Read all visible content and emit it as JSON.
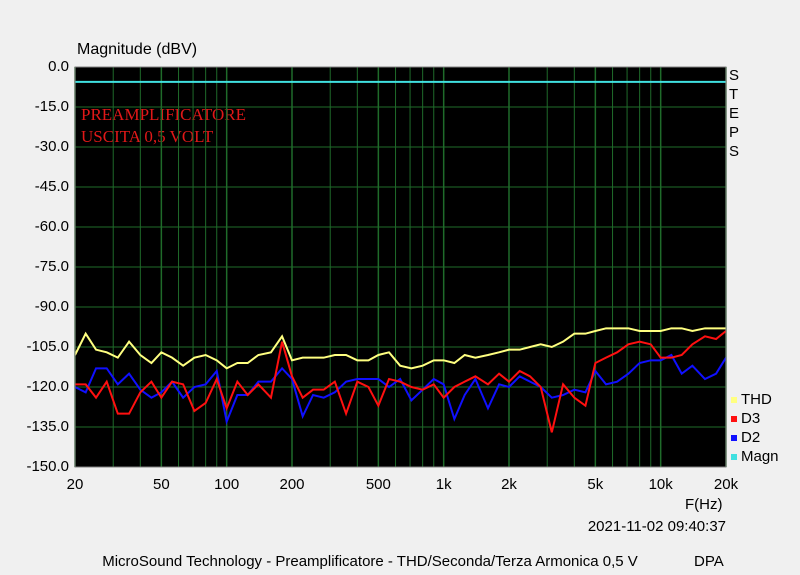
{
  "chart_data": {
    "type": "line",
    "ylabel": "Magnitude (dBV)",
    "xlabel": "F(Hz)",
    "annotations": [
      "PREAMPLIFICATORE",
      "USCITA 0,5 VOLT"
    ],
    "side_label": "STEPS",
    "timestamp": "2021-11-02 09:40:37",
    "footer": "MicroSound Technology - Preamplificatore - THD/Seconda/Terza Armonica 0,5 V",
    "footer_right": "DPA",
    "xscale": "log",
    "xlim": [
      20,
      20000
    ],
    "ylim": [
      -150,
      0
    ],
    "xticks": [
      20,
      50,
      100,
      200,
      500,
      {
        "value": 1000,
        "label": "1k"
      },
      {
        "value": 2000,
        "label": "2k"
      },
      {
        "value": 5000,
        "label": "5k"
      },
      {
        "value": 10000,
        "label": "10k"
      },
      {
        "value": 20000,
        "label": "20k"
      }
    ],
    "xgrid_minor": [
      30,
      40,
      60,
      70,
      80,
      90,
      300,
      400,
      600,
      700,
      800,
      900,
      3000,
      4000,
      6000,
      7000,
      8000,
      9000
    ],
    "yticks": [
      {
        "value": 0,
        "label": "0.0"
      },
      {
        "value": -15,
        "label": "-15.0"
      },
      {
        "value": -30,
        "label": "-30.0"
      },
      {
        "value": -45,
        "label": "-45.0"
      },
      {
        "value": -60,
        "label": "-60.0"
      },
      {
        "value": -75,
        "label": "-75.0"
      },
      {
        "value": -90,
        "label": "-90.0"
      },
      {
        "value": -105,
        "label": "-105.0"
      },
      {
        "value": -120,
        "label": "-120.0"
      },
      {
        "value": -135,
        "label": "-135.0"
      },
      {
        "value": -150,
        "label": "-150.0"
      }
    ],
    "grid": true,
    "grid_color": "#1f6b2a",
    "background": "#000000",
    "legend": "lower right",
    "x": [
      20,
      22.4,
      25,
      28,
      31.5,
      35.5,
      40,
      45,
      50,
      56,
      63,
      71,
      80,
      90,
      100,
      112,
      125,
      140,
      160,
      180,
      200,
      224,
      250,
      280,
      315,
      355,
      400,
      450,
      500,
      560,
      630,
      710,
      800,
      900,
      1000,
      1120,
      1250,
      1400,
      1600,
      1800,
      2000,
      2240,
      2500,
      2800,
      3150,
      3550,
      4000,
      4500,
      5000,
      5600,
      6300,
      7100,
      8000,
      9000,
      10000,
      11200,
      12500,
      14000,
      16000,
      18000,
      20000
    ],
    "series": [
      {
        "name": "THD",
        "color": "#ffff80",
        "values": [
          -108,
          -100,
          -106,
          -107,
          -109,
          -103,
          -108,
          -111,
          -107,
          -109,
          -112,
          -109,
          -108,
          -110,
          -113,
          -111,
          -111,
          -108,
          -107,
          -101,
          -110,
          -109,
          -109,
          -109,
          -108,
          -108,
          -110,
          -110,
          -108,
          -107,
          -112,
          -113,
          -112,
          -110,
          -110,
          -111,
          -108,
          -109,
          -108,
          -107,
          -106,
          -106,
          -105,
          -104,
          -105,
          -103,
          -100,
          -100,
          -99,
          -98,
          -98,
          -98,
          -99,
          -99,
          -99,
          -98,
          -98,
          -99,
          -98,
          -98,
          -98
        ]
      },
      {
        "name": "D3",
        "color": "#ff1010",
        "values": [
          -119,
          -119,
          -124,
          -118,
          -130,
          -130,
          -122,
          -118,
          -124,
          -118,
          -119,
          -129,
          -126,
          -117,
          -128,
          -118,
          -123,
          -119,
          -124,
          -103,
          -116,
          -124,
          -121,
          -121,
          -118,
          -130,
          -118,
          -120,
          -127,
          -117,
          -118,
          -120,
          -121,
          -119,
          -124,
          -120,
          -118,
          -116,
          -119,
          -115,
          -118,
          -114,
          -116,
          -120,
          -137,
          -119,
          -124,
          -127,
          -111,
          -109,
          -107,
          -104,
          -103,
          -104,
          -109,
          -109,
          -108,
          -104,
          -101,
          -102,
          -99
        ]
      },
      {
        "name": "D2",
        "color": "#1010ff",
        "values": [
          -120,
          -122,
          -113,
          -113,
          -119,
          -115,
          -121,
          -124,
          -122,
          -118,
          -124,
          -120,
          -119,
          -114,
          -133,
          -123,
          -123,
          -118,
          -118,
          -113,
          -117,
          -131,
          -123,
          -124,
          -122,
          -118,
          -117,
          -117,
          -117,
          -120,
          -117,
          -125,
          -121,
          -117,
          -119,
          -132,
          -123,
          -117,
          -128,
          -119,
          -120,
          -116,
          -118,
          -120,
          -124,
          -123,
          -121,
          -122,
          -114,
          -119,
          -118,
          -115,
          -111,
          -110,
          -110,
          -108,
          -115,
          -112,
          -117,
          -115,
          -109
        ]
      },
      {
        "name": "Magn",
        "color": "#40e0e0",
        "values": [
          -5.6,
          -5.6,
          -5.6,
          -5.6,
          -5.6,
          -5.6,
          -5.6,
          -5.6,
          -5.6,
          -5.6,
          -5.6,
          -5.6,
          -5.6,
          -5.6,
          -5.6,
          -5.6,
          -5.6,
          -5.6,
          -5.6,
          -5.6,
          -5.6,
          -5.6,
          -5.6,
          -5.6,
          -5.6,
          -5.6,
          -5.6,
          -5.6,
          -5.6,
          -5.6,
          -5.6,
          -5.6,
          -5.6,
          -5.6,
          -5.6,
          -5.6,
          -5.6,
          -5.6,
          -5.6,
          -5.6,
          -5.6,
          -5.6,
          -5.6,
          -5.6,
          -5.6,
          -5.6,
          -5.6,
          -5.6,
          -5.6,
          -5.6,
          -5.6,
          -5.6,
          -5.6,
          -5.6,
          -5.6,
          -5.6,
          -5.6,
          -5.6,
          -5.6,
          -5.6,
          -5.6
        ]
      }
    ]
  }
}
